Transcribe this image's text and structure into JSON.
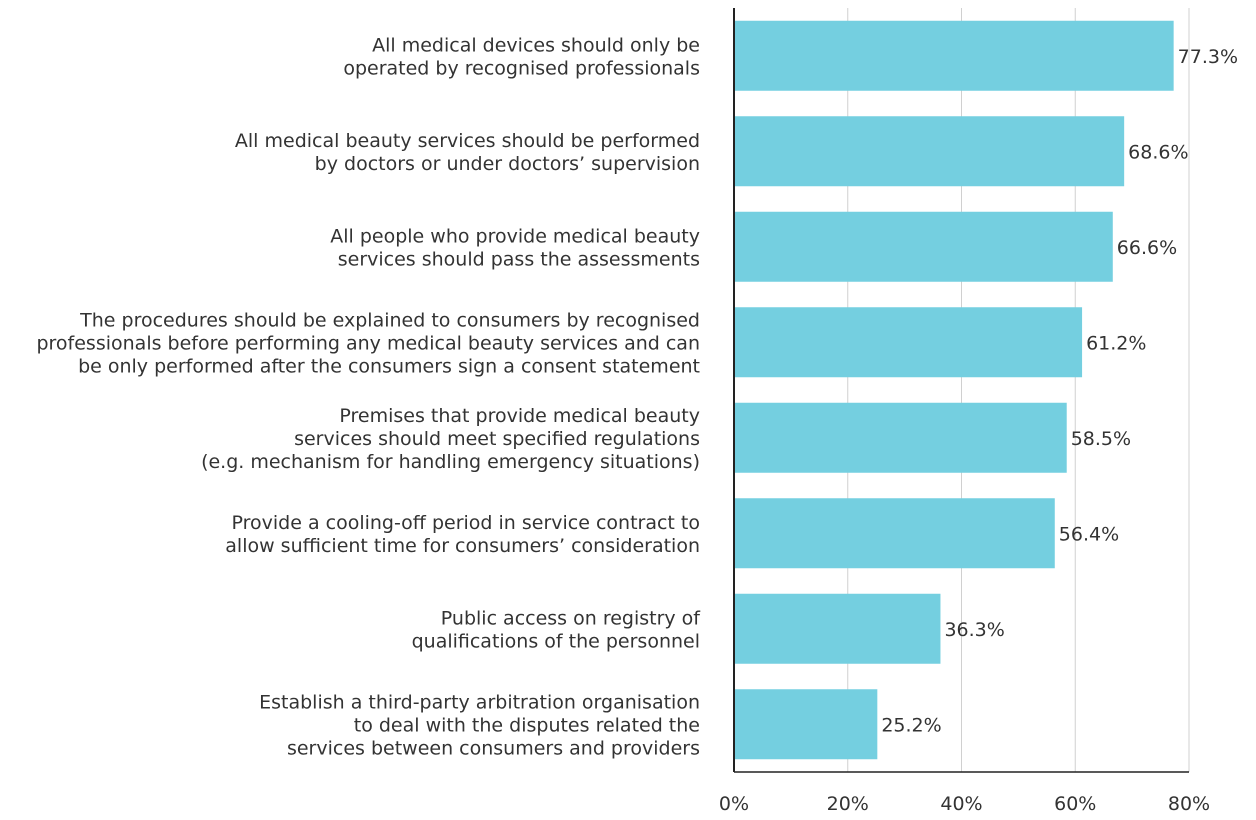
{
  "chart_data": {
    "type": "bar",
    "orientation": "horizontal",
    "categories": [
      [
        "All medical devices should only be",
        "operated by recognised professionals"
      ],
      [
        "All medical beauty services should be performed",
        "by doctors or under doctors’ supervision"
      ],
      [
        "All people who provide medical beauty",
        "services should pass the assessments"
      ],
      [
        "The procedures should be explained to consumers by recognised",
        "professionals before performing any medical beauty services and can",
        "be only performed after the consumers sign a consent statement"
      ],
      [
        "Premises that provide medical beauty",
        "services should meet specified regulations",
        "(e.g. mechanism for handling emergency situations)"
      ],
      [
        "Provide a cooling-off period in service contract to",
        "allow sufficient time for consumers’ consideration"
      ],
      [
        "Public access on registry of",
        "qualifications of the personnel"
      ],
      [
        "Establish a third-party arbitration organisation",
        "to deal with the disputes related the",
        "services between consumers and providers"
      ]
    ],
    "values": [
      77.3,
      68.6,
      66.6,
      61.2,
      58.5,
      56.4,
      36.3,
      25.2
    ],
    "value_labels": [
      "77.3%",
      "68.6%",
      "66.6%",
      "61.2%",
      "58.5%",
      "56.4%",
      "36.3%",
      "25.2%"
    ],
    "xlim": [
      0,
      80
    ],
    "xticks": [
      0,
      20,
      40,
      60,
      80
    ],
    "xtick_labels": [
      "0%",
      "20%",
      "40%",
      "60%",
      "80%"
    ],
    "title": "",
    "xlabel": "",
    "ylabel": "",
    "grid": "vertical",
    "legend": "none",
    "colors": {
      "bar": "#74CFE0",
      "grid": "#d0d0d0",
      "axis": "#222222",
      "text": "#333333"
    }
  }
}
